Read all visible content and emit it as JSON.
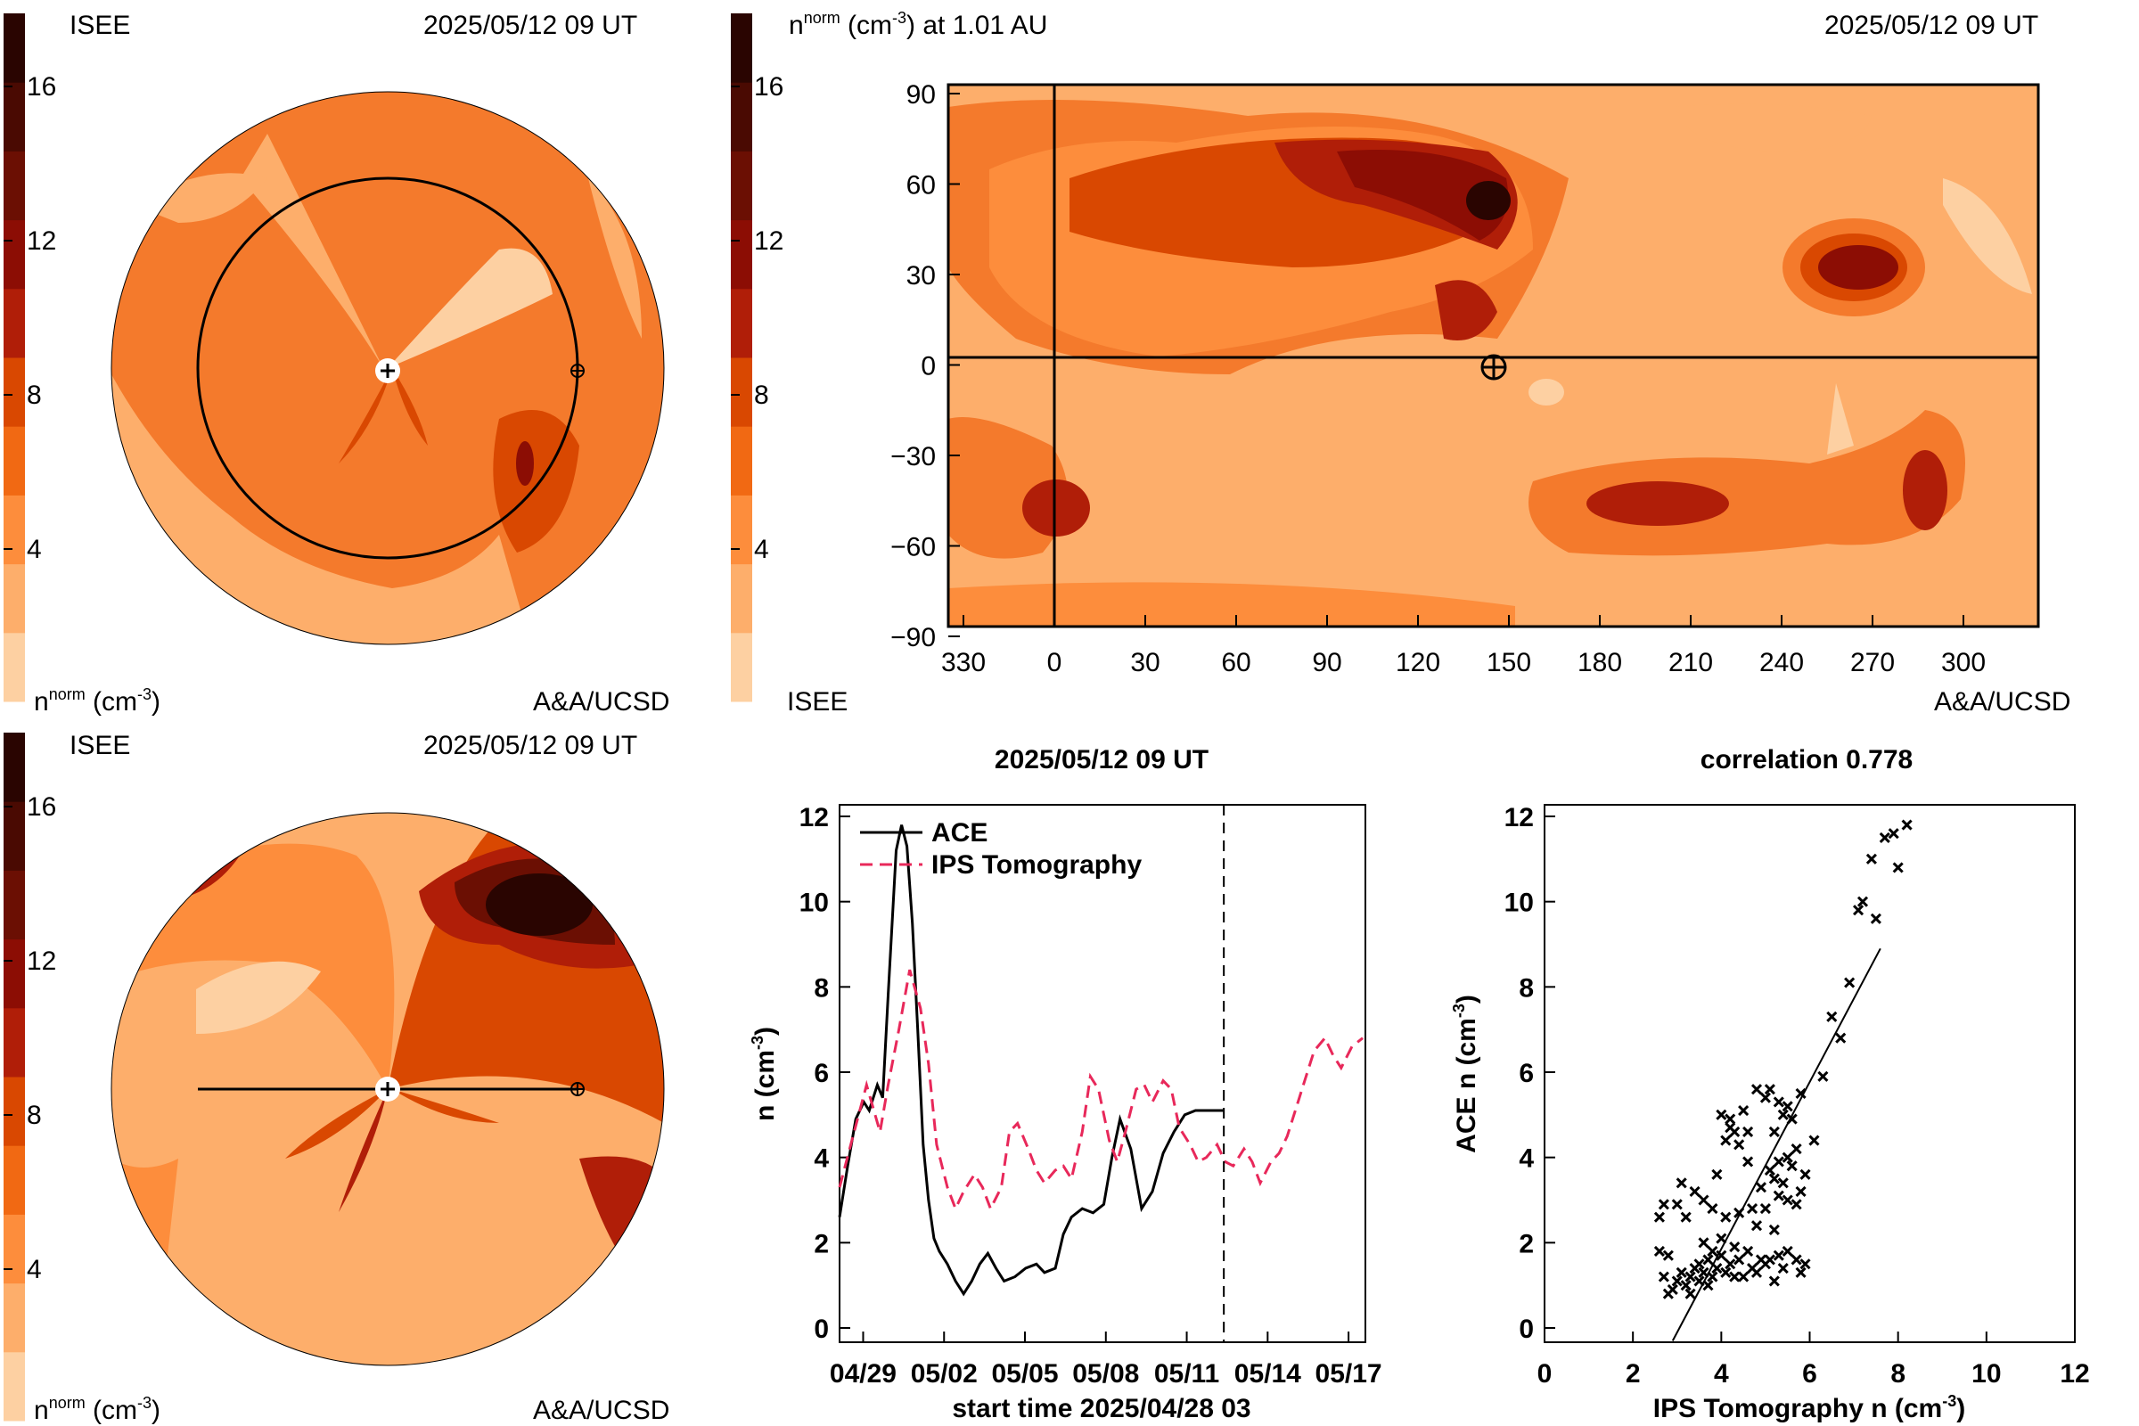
{
  "colors": {
    "levels": [
      "#fdd0a2",
      "#fdae6b",
      "#fd8d3c",
      "#f16913",
      "#d94801",
      "#b01e08",
      "#8c0d04",
      "#6b0f03",
      "#4a0a02",
      "#2a0501"
    ],
    "series_ace": "#000000",
    "series_ips": "#e8285a"
  },
  "panel_top_left": {
    "org": "ISEE",
    "time": "2025/05/12 09 UT",
    "credit": "A&A/UCSD",
    "bar_label": "n",
    "bar_sup": "norm",
    "bar_unit": " (cm",
    "bar_unit_sup": "-3",
    "bar_unit_end": ")",
    "ticks": [
      "4",
      "8",
      "12",
      "16"
    ]
  },
  "panel_top_right": {
    "title": "n",
    "title_sup": "norm",
    "title_unit": " (cm",
    "title_unit_sup": "-3",
    "title_rest": ") at 1.01 AU",
    "time": "2025/05/12 09 UT",
    "org": "ISEE",
    "credit": "A&A/UCSD",
    "bar_ticks": [
      "4",
      "8",
      "12",
      "16"
    ],
    "x_ticks": [
      "330",
      "0",
      "30",
      "60",
      "90",
      "120",
      "150",
      "180",
      "210",
      "240",
      "270",
      "300"
    ],
    "y_ticks": [
      "90",
      "60",
      "30",
      "0",
      "−30",
      "−60",
      "−90"
    ]
  },
  "panel_bottom_left": {
    "org": "ISEE",
    "time": "2025/05/12 09 UT",
    "credit": "A&A/UCSD",
    "bar_label": "n",
    "bar_sup": "norm",
    "bar_unit": " (cm",
    "bar_unit_sup": "-3",
    "bar_unit_end": ")",
    "ticks": [
      "4",
      "8",
      "12",
      "16"
    ]
  },
  "chart_data": [
    {
      "type": "line",
      "title": "2025/05/12 09 UT",
      "xlabel": "start time 2025/04/28 03",
      "ylabel": "n (cm",
      "ylabel_sup": "-3",
      "ylabel_end": ")",
      "xlim": [
        0,
        19.5
      ],
      "ylim": [
        0,
        12
      ],
      "x_ticks": [
        {
          "v": 0.875,
          "label": "04/29"
        },
        {
          "v": 3.875,
          "label": "05/02"
        },
        {
          "v": 6.875,
          "label": "05/05"
        },
        {
          "v": 9.875,
          "label": "05/08"
        },
        {
          "v": 12.875,
          "label": "05/11"
        },
        {
          "v": 15.875,
          "label": "05/14"
        },
        {
          "v": 18.875,
          "label": "05/17"
        }
      ],
      "y_ticks": [
        0,
        2,
        4,
        6,
        8,
        10,
        12
      ],
      "now_marker_x": 14.25,
      "legend": [
        "ACE",
        "IPS Tomography"
      ],
      "series": [
        {
          "name": "ACE",
          "x": [
            0,
            0.3,
            0.6,
            0.9,
            1.1,
            1.4,
            1.6,
            1.8,
            2.1,
            2.3,
            2.5,
            2.7,
            2.9,
            3.1,
            3.3,
            3.5,
            3.7,
            4.0,
            4.3,
            4.6,
            4.9,
            5.2,
            5.5,
            5.8,
            6.1,
            6.5,
            6.9,
            7.3,
            7.6,
            8.0,
            8.3,
            8.6,
            9.0,
            9.4,
            9.8,
            10.1,
            10.4,
            10.8,
            11.2,
            11.6,
            12.0,
            12.4,
            12.8,
            13.2,
            13.6,
            14.0,
            14.25
          ],
          "y": [
            2.6,
            3.8,
            4.9,
            5.3,
            5.1,
            5.7,
            5.4,
            7.8,
            11.2,
            11.8,
            11.3,
            9.5,
            7.0,
            4.3,
            3.0,
            2.1,
            1.8,
            1.5,
            1.1,
            0.8,
            1.1,
            1.5,
            1.75,
            1.4,
            1.1,
            1.2,
            1.4,
            1.5,
            1.3,
            1.4,
            2.2,
            2.6,
            2.8,
            2.7,
            2.9,
            4.0,
            4.9,
            4.2,
            2.8,
            3.2,
            4.1,
            4.6,
            5.0,
            5.1,
            5.1,
            5.1,
            5.1
          ]
        },
        {
          "name": "IPS Tomography",
          "x": [
            0,
            0.5,
            1.0,
            1.5,
            1.8,
            2.2,
            2.6,
            3.0,
            3.3,
            3.6,
            4.0,
            4.3,
            4.6,
            5.0,
            5.3,
            5.6,
            6.0,
            6.3,
            6.6,
            7.0,
            7.3,
            7.6,
            8.0,
            8.3,
            8.6,
            9.0,
            9.3,
            9.6,
            10.0,
            10.3,
            10.6,
            11.0,
            11.3,
            11.6,
            12.0,
            12.3,
            12.6,
            13.0,
            13.3,
            13.6,
            14.0,
            14.3,
            14.6,
            15.0,
            15.3,
            15.6,
            16.0,
            16.3,
            16.6,
            17.0,
            17.3,
            17.6,
            18.0,
            18.3,
            18.6,
            19.0,
            19.4
          ],
          "y": [
            3.3,
            4.5,
            5.7,
            4.6,
            5.7,
            7.0,
            8.4,
            7.5,
            6.2,
            4.3,
            3.3,
            2.8,
            3.2,
            3.6,
            3.3,
            2.8,
            3.3,
            4.6,
            4.8,
            4.2,
            3.7,
            3.4,
            3.7,
            3.8,
            3.5,
            4.6,
            5.9,
            5.6,
            4.4,
            3.9,
            4.6,
            5.6,
            5.7,
            5.3,
            5.8,
            5.6,
            4.7,
            4.3,
            3.9,
            4.0,
            4.3,
            3.9,
            3.8,
            4.2,
            3.9,
            3.4,
            3.9,
            4.1,
            4.5,
            5.3,
            5.9,
            6.5,
            6.8,
            6.4,
            6.1,
            6.6,
            6.8
          ]
        }
      ]
    },
    {
      "type": "scatter",
      "title": "correlation 0.778",
      "xlabel": "IPS Tomography n (cm",
      "xlabel_sup": "-3",
      "xlabel_end": ")",
      "ylabel": "ACE n (cm",
      "ylabel_sup": "-3",
      "ylabel_end": ")",
      "xlim": [
        0,
        12
      ],
      "ylim": [
        0,
        12
      ],
      "x_ticks": [
        0,
        2,
        4,
        6,
        8,
        10,
        12
      ],
      "y_ticks": [
        0,
        2,
        4,
        6,
        8,
        10,
        12
      ],
      "fit_line": {
        "x": [
          2.9,
          7.6
        ],
        "y": [
          -0.3,
          8.9
        ]
      },
      "points": [
        [
          2.6,
          2.6
        ],
        [
          2.7,
          2.9
        ],
        [
          2.6,
          1.8
        ],
        [
          2.8,
          1.7
        ],
        [
          2.7,
          1.2
        ],
        [
          2.8,
          0.8
        ],
        [
          2.9,
          0.9
        ],
        [
          3.0,
          1.1
        ],
        [
          3.1,
          1.3
        ],
        [
          3.2,
          1.0
        ],
        [
          3.3,
          1.2
        ],
        [
          3.4,
          1.4
        ],
        [
          3.5,
          1.1
        ],
        [
          3.5,
          1.5
        ],
        [
          3.6,
          1.3
        ],
        [
          3.7,
          1.6
        ],
        [
          3.8,
          1.2
        ],
        [
          3.9,
          1.4
        ],
        [
          3.8,
          1.8
        ],
        [
          4.0,
          1.7
        ],
        [
          4.1,
          1.3
        ],
        [
          4.2,
          1.5
        ],
        [
          4.3,
          1.9
        ],
        [
          4.4,
          1.6
        ],
        [
          4.5,
          1.2
        ],
        [
          4.6,
          1.8
        ],
        [
          4.7,
          1.4
        ],
        [
          4.8,
          1.3
        ],
        [
          5.0,
          1.5
        ],
        [
          5.1,
          1.6
        ],
        [
          5.2,
          1.1
        ],
        [
          5.3,
          1.7
        ],
        [
          5.4,
          1.4
        ],
        [
          5.5,
          1.8
        ],
        [
          5.7,
          1.6
        ],
        [
          5.8,
          1.3
        ],
        [
          5.9,
          1.5
        ],
        [
          3.0,
          2.9
        ],
        [
          3.2,
          2.6
        ],
        [
          3.4,
          3.2
        ],
        [
          3.1,
          3.4
        ],
        [
          3.6,
          3.0
        ],
        [
          3.8,
          2.8
        ],
        [
          3.9,
          3.6
        ],
        [
          4.0,
          5.0
        ],
        [
          4.1,
          4.4
        ],
        [
          4.2,
          4.9
        ],
        [
          4.3,
          4.6
        ],
        [
          4.4,
          4.3
        ],
        [
          4.5,
          5.1
        ],
        [
          4.6,
          3.9
        ],
        [
          4.1,
          2.6
        ],
        [
          4.4,
          2.7
        ],
        [
          4.7,
          2.8
        ],
        [
          4.8,
          2.4
        ],
        [
          4.9,
          3.3
        ],
        [
          5.0,
          2.8
        ],
        [
          5.1,
          3.7
        ],
        [
          5.2,
          3.5
        ],
        [
          5.3,
          3.1
        ],
        [
          5.4,
          3.4
        ],
        [
          5.5,
          3.0
        ],
        [
          5.6,
          3.8
        ],
        [
          5.7,
          2.9
        ],
        [
          5.8,
          3.2
        ],
        [
          5.9,
          3.6
        ],
        [
          5.0,
          5.4
        ],
        [
          5.1,
          5.6
        ],
        [
          5.3,
          5.3
        ],
        [
          5.4,
          5.0
        ],
        [
          5.2,
          4.6
        ],
        [
          5.5,
          5.2
        ],
        [
          5.6,
          4.9
        ],
        [
          5.7,
          4.2
        ],
        [
          5.8,
          5.5
        ],
        [
          5.5,
          4.0
        ],
        [
          5.3,
          3.9
        ],
        [
          6.1,
          4.4
        ],
        [
          6.3,
          5.9
        ],
        [
          6.5,
          7.3
        ],
        [
          6.7,
          6.8
        ],
        [
          6.9,
          8.1
        ],
        [
          7.1,
          9.8
        ],
        [
          7.2,
          10.0
        ],
        [
          7.5,
          9.6
        ],
        [
          7.4,
          11.0
        ],
        [
          7.7,
          11.5
        ],
        [
          7.9,
          11.6
        ],
        [
          8.0,
          10.8
        ],
        [
          8.2,
          11.8
        ],
        [
          4.6,
          4.6
        ],
        [
          4.8,
          5.6
        ],
        [
          4.2,
          4.7
        ],
        [
          3.7,
          1.0
        ],
        [
          3.3,
          0.8
        ],
        [
          4.0,
          2.1
        ],
        [
          4.3,
          1.2
        ],
        [
          4.9,
          1.6
        ],
        [
          5.2,
          2.3
        ],
        [
          3.6,
          2.0
        ]
      ]
    }
  ]
}
